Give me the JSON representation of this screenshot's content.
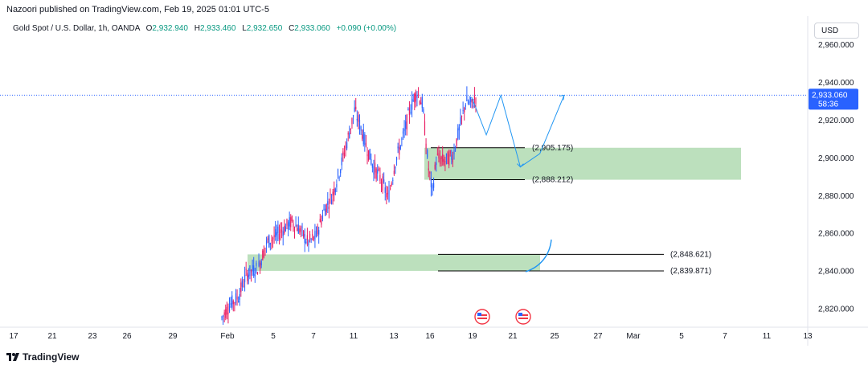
{
  "header": {
    "published": "Nazoori published on TradingView.com, Feb 19, 2025 01:01 UTC-5"
  },
  "symbol": {
    "title": "Gold Spot / U.S. Dollar, 1h, OANDA",
    "ohlc": [
      {
        "label": "O",
        "value": "2,932.940"
      },
      {
        "label": "H",
        "value": "2,933.460"
      },
      {
        "label": "L",
        "value": "2,932.650"
      },
      {
        "label": "C",
        "value": "2,933.060"
      }
    ],
    "change": "+0.090 (+0.00%)"
  },
  "currency_button": "USD",
  "footer": {
    "brand": "TradingView"
  },
  "colors": {
    "up": "#089981",
    "down": "#f23645",
    "candle": "#2962ff",
    "candle_down": "#e91e63",
    "zone": "#a5d6a7",
    "projection": "#2196f3",
    "price_line": "#2962ff",
    "text": "#131722"
  },
  "chart_data": {
    "type": "candlestick",
    "x_ticks": [
      "17",
      "21",
      "23",
      "26",
      "29",
      "Feb",
      "5",
      "7",
      "11",
      "13",
      "16",
      "19",
      "21",
      "25",
      "27",
      "Mar",
      "5",
      "7",
      "11",
      "13"
    ],
    "y_ticks": [
      "2,820.000",
      "2,840.000",
      "2,860.000",
      "2,880.000",
      "2,900.000",
      "2,920.000",
      "2,940.000",
      "2,960.000"
    ],
    "ylim": [
      2810,
      2975
    ],
    "current_price": {
      "value": 2933.06,
      "label": "2,933.060",
      "countdown": "58:36"
    },
    "candles_path": [
      [
        0,
        2815
      ],
      [
        10,
        2822
      ],
      [
        20,
        2826
      ],
      [
        30,
        2838
      ],
      [
        45,
        2842
      ],
      [
        55,
        2855
      ],
      [
        65,
        2858
      ],
      [
        75,
        2862
      ],
      [
        85,
        2866
      ],
      [
        95,
        2862
      ],
      [
        105,
        2855
      ],
      [
        115,
        2858
      ],
      [
        125,
        2872
      ],
      [
        135,
        2880
      ],
      [
        145,
        2895
      ],
      [
        155,
        2912
      ],
      [
        162,
        2925
      ],
      [
        168,
        2918
      ],
      [
        175,
        2908
      ],
      [
        185,
        2895
      ],
      [
        195,
        2888
      ],
      [
        203,
        2878
      ],
      [
        212,
        2898
      ],
      [
        222,
        2912
      ],
      [
        230,
        2926
      ],
      [
        238,
        2935
      ],
      [
        245,
        2928
      ],
      [
        252,
        2895
      ],
      [
        257,
        2882
      ],
      [
        262,
        2900
      ],
      [
        272,
        2898
      ],
      [
        282,
        2901
      ],
      [
        290,
        2915
      ],
      [
        298,
        2930
      ],
      [
        305,
        2928
      ],
      [
        310,
        2932
      ]
    ],
    "zones": [
      {
        "from": 2888.212,
        "to": 2905.175,
        "labels": [
          "(2,905.175)",
          "(2,888.212)"
        ]
      },
      {
        "from": 2839.871,
        "to": 2848.621,
        "labels": [
          "(2,848.621)",
          "(2,839.871)"
        ]
      }
    ],
    "projection_path": [
      [
        305,
        2932
      ],
      [
        320,
        2912
      ],
      [
        335,
        2933
      ],
      [
        355,
        2895
      ],
      [
        375,
        2902
      ],
      [
        400,
        2933
      ]
    ],
    "events": [
      {
        "x": 16.3
      },
      {
        "x": 20.6
      }
    ]
  }
}
